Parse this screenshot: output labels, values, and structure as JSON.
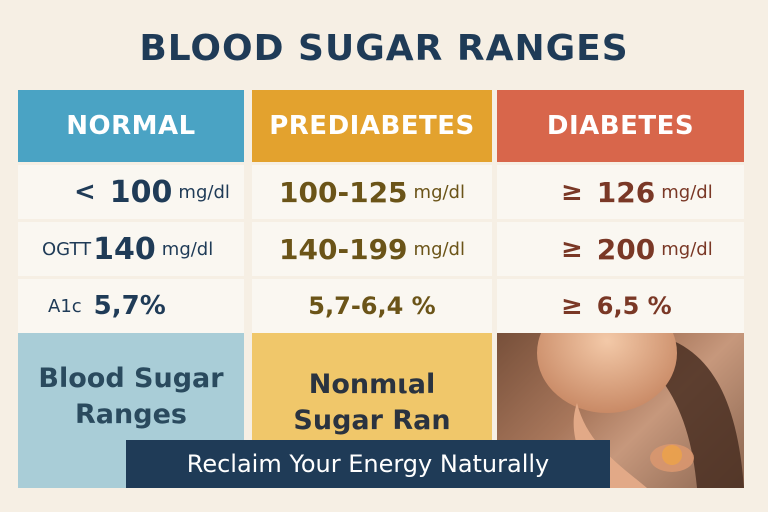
{
  "title": "BLOOD SUGAR RANGES",
  "columns": [
    {
      "header": "NORMAL"
    },
    {
      "header": "PREDIABETES"
    },
    {
      "header": "DIABETES"
    }
  ],
  "rows": {
    "normal": {
      "r1_symbol": "<",
      "r1_value": "100",
      "r1_unit": "mg/dl",
      "r2_prefix": "OGTT",
      "r2_value": "140",
      "r2_unit": "mg/dl",
      "r3_prefix": "A1c",
      "r3_value": "5,7%"
    },
    "prediabetes": {
      "r1_value": "100-125",
      "r1_unit": "mg/dl",
      "r2_value": "140-199",
      "r2_unit": "mg/dl",
      "r3_value": "5,7-6,4 %"
    },
    "diabetes": {
      "r1_symbol": "≥",
      "r1_value": "126",
      "r1_unit": "mg/dl",
      "r2_symbol": "≥",
      "r2_value": "200",
      "r2_unit": "mg/dl",
      "r3_symbol": "≥",
      "r3_value": "6,5 %"
    }
  },
  "bottom": {
    "left_line1": "Blood Sugar",
    "left_line2": "Ranges",
    "middle_line1": "Nonmιal",
    "middle_line2": "Sugar Ran"
  },
  "banner": "Reclaim Your Energy Naturally"
}
